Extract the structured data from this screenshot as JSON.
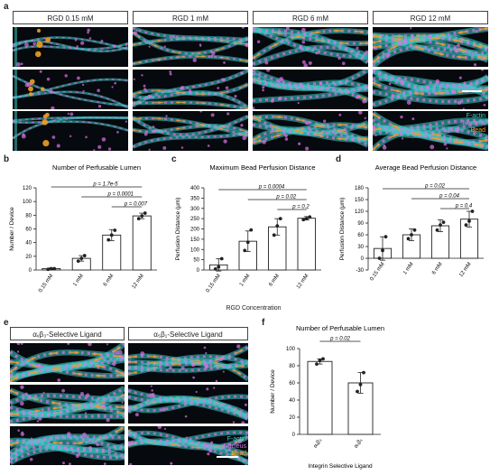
{
  "panel_letters": {
    "a": "a",
    "b": "b",
    "c": "c",
    "d": "d",
    "e": "e",
    "f": "f"
  },
  "panel_a": {
    "columns": [
      "RGD 0.15 mM",
      "RGD 1 mM",
      "RGD 6 mM",
      "RGD 12 mM"
    ],
    "legend": [
      "F-actin",
      "Nucleus",
      "Bead"
    ]
  },
  "panel_e": {
    "columns": [
      "αᵥβ₃-Selective Ligand",
      "α₅β₁-Selective Ligand"
    ],
    "legend": [
      "F-actin",
      "Nucleus",
      "Bead"
    ]
  },
  "colors": {
    "factin": "#39d0c8",
    "nucleus": "#e070e8",
    "bead": "#f0a020"
  },
  "chart_data": [
    {
      "id": "b",
      "type": "bar",
      "title": "Number of Perfusable Lumen",
      "ylabel": "Number / Device",
      "xlabel": "",
      "categories": [
        "0.15 mM",
        "1 mM",
        "6 mM",
        "12 mM"
      ],
      "values": [
        2,
        17,
        51,
        79
      ],
      "errors": [
        1,
        4,
        8,
        4
      ],
      "points": [
        [
          1,
          2,
          2
        ],
        [
          13,
          17,
          21
        ],
        [
          44,
          51,
          58
        ],
        [
          75,
          79,
          83
        ]
      ],
      "ylim": [
        0,
        120
      ],
      "yticks": [
        0,
        20,
        40,
        60,
        80,
        100,
        120
      ],
      "comparisons": [
        {
          "from": 0,
          "to": 3,
          "label": "p = 1.7e-5"
        },
        {
          "from": 1,
          "to": 3,
          "label": "p = 0.0001"
        },
        {
          "from": 2,
          "to": 3,
          "label": "p = 0.007"
        }
      ]
    },
    {
      "id": "c",
      "type": "bar",
      "title": "Maximum Bead Perfusion Distance",
      "ylabel": "Perfusion Distance (μm)",
      "xlabel": "",
      "categories": [
        "0.15 mM",
        "1 mM",
        "6 mM",
        "12 mM"
      ],
      "values": [
        25,
        140,
        210,
        252
      ],
      "errors": [
        30,
        50,
        40,
        8
      ],
      "points": [
        [
          5,
          15,
          55
        ],
        [
          95,
          135,
          195
        ],
        [
          170,
          215,
          250
        ],
        [
          245,
          250,
          258
        ]
      ],
      "ylim": [
        0,
        400
      ],
      "yticks": [
        0,
        50,
        100,
        150,
        200,
        250,
        300,
        350,
        400
      ],
      "comparisons": [
        {
          "from": 0,
          "to": 3,
          "label": "p = 0.0004"
        },
        {
          "from": 1,
          "to": 3,
          "label": "p = 0.02"
        },
        {
          "from": 2,
          "to": 3,
          "label": "p = 0.2"
        }
      ]
    },
    {
      "id": "d",
      "type": "bar",
      "title": "Average Bead Perfusion Distance",
      "ylabel": "Perfusion Distance (μm)",
      "xlabel": "",
      "categories": [
        "0.15 mM",
        "1 mM",
        "6 mM",
        "12 mM"
      ],
      "values": [
        25,
        60,
        83,
        100
      ],
      "errors": [
        30,
        15,
        15,
        20
      ],
      "points": [
        [
          0,
          20,
          55
        ],
        [
          50,
          60,
          72
        ],
        [
          72,
          85,
          92
        ],
        [
          85,
          95,
          120
        ]
      ],
      "ylim": [
        -30,
        180
      ],
      "yticks": [
        -30,
        0,
        30,
        60,
        90,
        120,
        150,
        180
      ],
      "comparisons": [
        {
          "from": 0,
          "to": 3,
          "label": "p = 0.02"
        },
        {
          "from": 1,
          "to": 3,
          "label": "p = 0.04"
        },
        {
          "from": 2,
          "to": 3,
          "label": "p = 0.4"
        }
      ]
    },
    {
      "id": "f",
      "type": "bar",
      "title": "Number of Perfusable Lumen",
      "ylabel": "Number / Device",
      "xlabel": "Integrin Selective Ligand",
      "categories": [
        "αᵥβ₃",
        "α₅β₁"
      ],
      "values": [
        85,
        60
      ],
      "errors": [
        3,
        12
      ],
      "points": [
        [
          82,
          86,
          88
        ],
        [
          50,
          58,
          72
        ]
      ],
      "ylim": [
        0,
        100
      ],
      "yticks": [
        0,
        20,
        40,
        60,
        80,
        100
      ],
      "comparisons": [
        {
          "from": 0,
          "to": 1,
          "label": "p = 0.02"
        }
      ]
    }
  ],
  "shared_xlabel_bcd": "RGD Concentration"
}
